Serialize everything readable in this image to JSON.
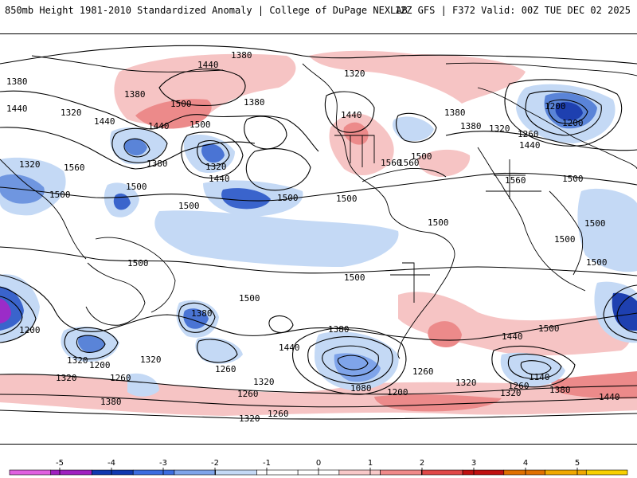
{
  "header": {
    "left": "850mb Height 1981-2010 Standardized Anomaly | College of DuPage NEXLAB",
    "right": "12Z GFS | F372 Valid: 00Z TUE DEC 02 2025"
  },
  "map": {
    "projection": "global equirectangular",
    "contour_labels": [
      "1380",
      "1440",
      "1320",
      "1500",
      "1440",
      "1500",
      "1380",
      "1440",
      "1320",
      "1500",
      "1560",
      "1320",
      "1440",
      "1380",
      "1560",
      "1500",
      "1500",
      "1500",
      "1320",
      "1560",
      "1380",
      "1320",
      "1260",
      "1200",
      "1500",
      "1440",
      "1440",
      "1500",
      "1560",
      "1500",
      "1500",
      "1500",
      "1500",
      "1500",
      "1500",
      "1500",
      "1500",
      "1380",
      "1440",
      "1380",
      "1380",
      "1320",
      "1200",
      "1260",
      "1320",
      "1380",
      "1260",
      "1200",
      "1320",
      "1260",
      "1380",
      "1440",
      "1080",
      "1200",
      "1260",
      "1320",
      "1500",
      "1440",
      "1380",
      "1260",
      "1140",
      "1320",
      "1380",
      "1440",
      "1320",
      "1260",
      "1320",
      "1200"
    ]
  },
  "colorbar": {
    "ticks": [
      "-5",
      "-4",
      "-3",
      "-2",
      "-1",
      "0",
      "1",
      "2",
      "3",
      "4",
      "5"
    ],
    "colors": [
      "#e060e0",
      "#a020c0",
      "#1038b0",
      "#3c6ce0",
      "#7fa4ea",
      "#c4d9f5",
      "#ffffff",
      "#ffffff",
      "#f8c8c8",
      "#f08a8a",
      "#e04848",
      "#c01010",
      "#e07000",
      "#f0a800",
      "#f8d000"
    ]
  }
}
